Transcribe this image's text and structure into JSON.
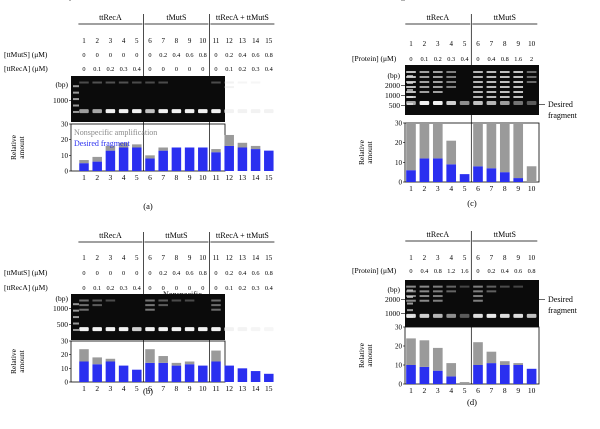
{
  "colors": {
    "nonspecific": "#9a9a9a",
    "desired": "#2a2ff0",
    "gel_bg": "#0b0b0b"
  },
  "panels": {
    "a": {
      "caption": "(a)",
      "groups": [
        "ttRecA",
        "tMutS",
        "ttRecA + ttMutS"
      ],
      "lane_numbers": [
        "1",
        "2",
        "3",
        "4",
        "5",
        "6",
        "7",
        "8",
        "9",
        "10",
        "11",
        "12",
        "13",
        "14",
        "15"
      ],
      "conc_rows": [
        {
          "label": "[ttMutS] (μM)",
          "values": [
            "0",
            "0",
            "0",
            "0",
            "0",
            "0",
            "0.2",
            "0.4",
            "0.6",
            "0.8",
            "0",
            "0.2",
            "0.4",
            "0.6",
            "0.8"
          ]
        },
        {
          "label": "[ttRecA] (μM)",
          "values": [
            "0",
            "0.1",
            "0.2",
            "0.3",
            "0.4",
            "0",
            "0",
            "0",
            "0",
            "0",
            "0",
            "0.1",
            "0.2",
            "0.3",
            "0.4"
          ]
        }
      ],
      "bp_label": "(bp)",
      "bp_ticks": [
        "1000",
        "500"
      ],
      "gel_annotations": [
        "Nonspecific",
        "amplification",
        "Desired fragment"
      ],
      "legend": [
        "Nonspecific amplification",
        "Desired fragment"
      ],
      "ylabel": [
        "Relative",
        "amount"
      ]
    },
    "b": {
      "caption": "(b)",
      "groups": [
        "ttRecA",
        "ttMutS",
        "ttRecA + ttMutS"
      ],
      "lane_numbers": [
        "1",
        "2",
        "3",
        "4",
        "5",
        "6",
        "7",
        "8",
        "9",
        "10",
        "11",
        "12",
        "13",
        "14",
        "15"
      ],
      "conc_rows": [
        {
          "label": "[ttMutS] (μM)",
          "values": [
            "0",
            "0",
            "0",
            "0",
            "0",
            "0",
            "0.2",
            "0.4",
            "0.6",
            "0.8",
            "0",
            "0.2",
            "0.4",
            "0.6",
            "0.8"
          ]
        },
        {
          "label": "[ttRecA] (μM)",
          "values": [
            "0",
            "0.1",
            "0.2",
            "0.3",
            "0.4",
            "0",
            "0",
            "0",
            "0",
            "0",
            "0",
            "0.1",
            "0.2",
            "0.3",
            "0.4"
          ]
        }
      ],
      "bp_label": "(bp)",
      "bp_ticks": [
        "1000",
        "500"
      ],
      "gel_annotations": [
        "Nonspecific",
        "amplification",
        "Nonspecific",
        "amplification",
        "Desired fragment"
      ],
      "ylabel": [
        "Relative",
        "amount"
      ]
    },
    "c": {
      "caption": "(c)",
      "groups": [
        "ttRecA",
        "ttMutS"
      ],
      "lane_numbers": [
        "1",
        "2",
        "3",
        "4",
        "5",
        "6",
        "7",
        "8",
        "9",
        "10"
      ],
      "conc_rows": [
        {
          "label": "[Protein] (μM)",
          "values": [
            "0",
            "0.1",
            "0.2",
            "0.3",
            "0.4",
            "0",
            "0.4",
            "0.8",
            "1.6",
            "2"
          ]
        }
      ],
      "bp_label": "(bp)",
      "bp_ticks": [
        "2000",
        "1000",
        "500"
      ],
      "gel_annotations": [
        "Desired",
        "fragment"
      ],
      "ylabel": [
        "Relative",
        "amount"
      ]
    },
    "d": {
      "caption": "(d)",
      "groups": [
        "ttRecA",
        "ttMutS"
      ],
      "lane_numbers": [
        "1",
        "2",
        "3",
        "4",
        "5",
        "6",
        "7",
        "8",
        "9",
        "10"
      ],
      "conc_rows": [
        {
          "label": "[Protein] (μM)",
          "values": [
            "0",
            "0.4",
            "0.8",
            "1.2",
            "1.6",
            "0",
            "0.2",
            "0.4",
            "0.6",
            "0.8"
          ]
        }
      ],
      "bp_label": "(bp)",
      "bp_ticks": [
        "2000",
        "1000",
        "500"
      ],
      "gel_annotations": [
        "Desired",
        "fragment"
      ],
      "ylabel": [
        "Relative",
        "amount"
      ]
    }
  },
  "chart_data": [
    {
      "panel": "a",
      "type": "bar",
      "stacked": true,
      "categories": [
        "1",
        "2",
        "3",
        "4",
        "5",
        "6",
        "7",
        "8",
        "9",
        "10",
        "11",
        "12",
        "13",
        "14",
        "15"
      ],
      "series": [
        {
          "name": "Desired fragment",
          "values": [
            5,
            6,
            13,
            15,
            15,
            8,
            13,
            15,
            15,
            15,
            12,
            16,
            15,
            14,
            13
          ]
        },
        {
          "name": "Nonspecific amplification",
          "values": [
            2,
            3,
            3,
            3,
            2,
            2,
            2,
            0,
            0,
            0,
            2,
            7,
            3,
            2,
            0
          ]
        }
      ],
      "ylim": [
        0,
        30
      ],
      "yticks": [
        "0",
        "10",
        "20",
        "30"
      ],
      "grid": false,
      "legend": "top-left"
    },
    {
      "panel": "b",
      "type": "bar",
      "stacked": true,
      "categories": [
        "1",
        "2",
        "3",
        "4",
        "5",
        "6",
        "7",
        "8",
        "9",
        "10",
        "11",
        "12",
        "13",
        "14",
        "15"
      ],
      "series": [
        {
          "name": "Desired fragment",
          "values": [
            15,
            13,
            15,
            12,
            9,
            14,
            14,
            12,
            13,
            12,
            15,
            12,
            10,
            8,
            6
          ]
        },
        {
          "name": "Nonspecific amplification",
          "values": [
            9,
            5,
            2,
            0,
            0,
            10,
            5,
            2,
            2,
            0,
            8,
            0,
            0,
            0,
            0
          ]
        }
      ],
      "ylim": [
        0,
        30
      ],
      "yticks": [
        "0",
        "10",
        "20",
        "30"
      ],
      "grid": false
    },
    {
      "panel": "c",
      "type": "bar",
      "stacked": true,
      "categories": [
        "1",
        "2",
        "3",
        "4",
        "5",
        "6",
        "7",
        "8",
        "9",
        "10"
      ],
      "series": [
        {
          "name": "Desired fragment",
          "values": [
            6,
            12,
            12,
            9,
            4,
            8,
            7,
            5,
            2,
            0
          ]
        },
        {
          "name": "Nonspecific amplification",
          "values": [
            24,
            18,
            18,
            12,
            0,
            22,
            23,
            25,
            28,
            8
          ]
        }
      ],
      "ylim": [
        0,
        30
      ],
      "yticks": [
        "0",
        "10",
        "20",
        "30"
      ],
      "grid": false
    },
    {
      "panel": "d",
      "type": "bar",
      "stacked": true,
      "categories": [
        "1",
        "2",
        "3",
        "4",
        "5",
        "6",
        "7",
        "8",
        "9",
        "10"
      ],
      "series": [
        {
          "name": "Desired fragment",
          "values": [
            10,
            9,
            7,
            4,
            0,
            10,
            11,
            10,
            10,
            8
          ]
        },
        {
          "name": "Nonspecific amplification",
          "values": [
            14,
            14,
            12,
            7,
            1,
            12,
            6,
            2,
            1,
            0
          ]
        }
      ],
      "ylim": [
        0,
        30
      ],
      "yticks": [
        "0",
        "10",
        "20",
        "30"
      ],
      "grid": false
    }
  ]
}
